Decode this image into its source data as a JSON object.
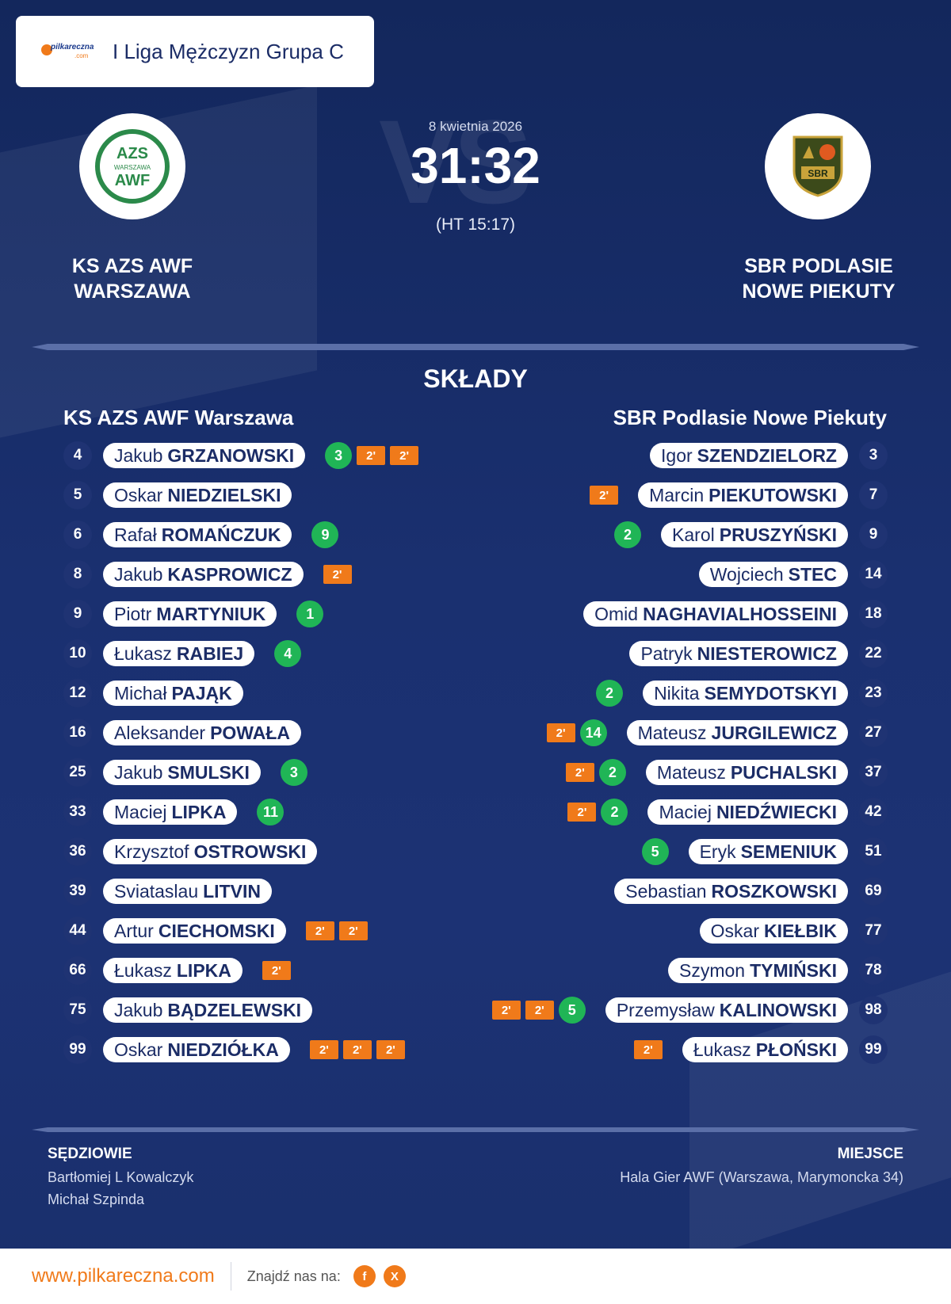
{
  "league": {
    "name": "I Liga Mężczyzn Grupa C",
    "logo_text": "pilkareczna",
    "logo_subtext": ".com"
  },
  "match": {
    "date": "8 kwietnia 2026",
    "score": "31:32",
    "halftime": "(HT 15:17)",
    "vs_watermark": "VS"
  },
  "home": {
    "name": "KS AZS AWF WARSZAWA",
    "crest_text": "AZS",
    "crest_sub": "WARSZAWA",
    "crest_bottom": "AWF",
    "list_title": "KS AZS AWF Warszawa",
    "players": [
      {
        "num": "4",
        "first": "Jakub",
        "last": "GRZANOWSKI",
        "goals": "3",
        "susp": [
          "2'",
          "2'"
        ]
      },
      {
        "num": "5",
        "first": "Oskar",
        "last": "NIEDZIELSKI",
        "goals": "",
        "susp": []
      },
      {
        "num": "6",
        "first": "Rafał",
        "last": "ROMAŃCZUK",
        "goals": "9",
        "susp": []
      },
      {
        "num": "8",
        "first": "Jakub",
        "last": "KASPROWICZ",
        "goals": "",
        "susp": [
          "2'"
        ]
      },
      {
        "num": "9",
        "first": "Piotr",
        "last": "MARTYNIUK",
        "goals": "1",
        "susp": []
      },
      {
        "num": "10",
        "first": "Łukasz",
        "last": "RABIEJ",
        "goals": "4",
        "susp": []
      },
      {
        "num": "12",
        "first": "Michał",
        "last": "PAJĄK",
        "goals": "",
        "susp": []
      },
      {
        "num": "16",
        "first": "Aleksander",
        "last": "POWAŁA",
        "goals": "",
        "susp": []
      },
      {
        "num": "25",
        "first": "Jakub",
        "last": "SMULSKI",
        "goals": "3",
        "susp": []
      },
      {
        "num": "33",
        "first": "Maciej",
        "last": "LIPKA",
        "goals": "11",
        "susp": []
      },
      {
        "num": "36",
        "first": "Krzysztof",
        "last": "OSTROWSKI",
        "goals": "",
        "susp": []
      },
      {
        "num": "39",
        "first": "Sviataslau",
        "last": "LITVIN",
        "goals": "",
        "susp": []
      },
      {
        "num": "44",
        "first": "Artur",
        "last": "CIECHOMSKI",
        "goals": "",
        "susp": [
          "2'",
          "2'"
        ]
      },
      {
        "num": "66",
        "first": "Łukasz",
        "last": "LIPKA",
        "goals": "",
        "susp": [
          "2'"
        ]
      },
      {
        "num": "75",
        "first": "Jakub",
        "last": "BĄDZELEWSKI",
        "goals": "",
        "susp": []
      },
      {
        "num": "99",
        "first": "Oskar",
        "last": "NIEDZIÓŁKA",
        "goals": "",
        "susp": [
          "2'",
          "2'",
          "2'"
        ]
      }
    ]
  },
  "away": {
    "name": "SBR PODLASIE NOWE PIEKUTY",
    "crest_text": "SBR",
    "list_title": "SBR Podlasie Nowe Piekuty",
    "players": [
      {
        "num": "3",
        "first": "Igor",
        "last": "SZENDZIELORZ",
        "goals": "",
        "susp": []
      },
      {
        "num": "7",
        "first": "Marcin",
        "last": "PIEKUTOWSKI",
        "goals": "",
        "susp": [
          "2'"
        ]
      },
      {
        "num": "9",
        "first": "Karol",
        "last": "PRUSZYŃSKI",
        "goals": "2",
        "susp": []
      },
      {
        "num": "14",
        "first": "Wojciech",
        "last": "STEC",
        "goals": "",
        "susp": []
      },
      {
        "num": "18",
        "first": "Omid",
        "last": "NAGHAVIALHOSSEINI",
        "goals": "",
        "susp": []
      },
      {
        "num": "22",
        "first": "Patryk",
        "last": "NIESTEROWICZ",
        "goals": "",
        "susp": []
      },
      {
        "num": "23",
        "first": "Nikita",
        "last": "SEMYDOTSKYI",
        "goals": "2",
        "susp": []
      },
      {
        "num": "27",
        "first": "Mateusz",
        "last": "JURGILEWICZ",
        "goals": "14",
        "susp": [
          "2'"
        ]
      },
      {
        "num": "37",
        "first": "Mateusz",
        "last": "PUCHALSKI",
        "goals": "2",
        "susp": [
          "2'"
        ]
      },
      {
        "num": "42",
        "first": "Maciej",
        "last": "NIEDŹWIECKI",
        "goals": "2",
        "susp": [
          "2'"
        ]
      },
      {
        "num": "51",
        "first": "Eryk",
        "last": "SEMENIUK",
        "goals": "5",
        "susp": []
      },
      {
        "num": "69",
        "first": "Sebastian",
        "last": "ROSZKOWSKI",
        "goals": "",
        "susp": []
      },
      {
        "num": "77",
        "first": "Oskar",
        "last": "KIEŁBIK",
        "goals": "",
        "susp": []
      },
      {
        "num": "78",
        "first": "Szymon",
        "last": "TYMIŃSKI",
        "goals": "",
        "susp": []
      },
      {
        "num": "98",
        "first": "Przemysław",
        "last": "KALINOWSKI",
        "goals": "5",
        "susp": [
          "2'",
          "2'"
        ]
      },
      {
        "num": "99",
        "first": "Łukasz",
        "last": "PŁOŃSKI",
        "goals": "",
        "susp": [
          "2'"
        ]
      }
    ]
  },
  "section_title": "SKŁADY",
  "referees": {
    "label": "SĘDZIOWIE",
    "names": [
      "Bartłomiej L Kowalczyk",
      "Michał Szpinda"
    ]
  },
  "venue": {
    "label": "MIEJSCE",
    "text": "Hala Gier AWF (Warszawa, Marymoncka 34)"
  },
  "footer": {
    "site": "www.pilkareczna.com",
    "find_label": "Znajdź nas na:",
    "socials": [
      {
        "icon": "facebook-icon",
        "glyph": "f"
      },
      {
        "icon": "x-icon",
        "glyph": "X"
      }
    ]
  },
  "colors": {
    "background": "#1a2f6c",
    "accent": "#f07a1a",
    "goal": "#20b556",
    "pill_text": "#1b2c66"
  }
}
